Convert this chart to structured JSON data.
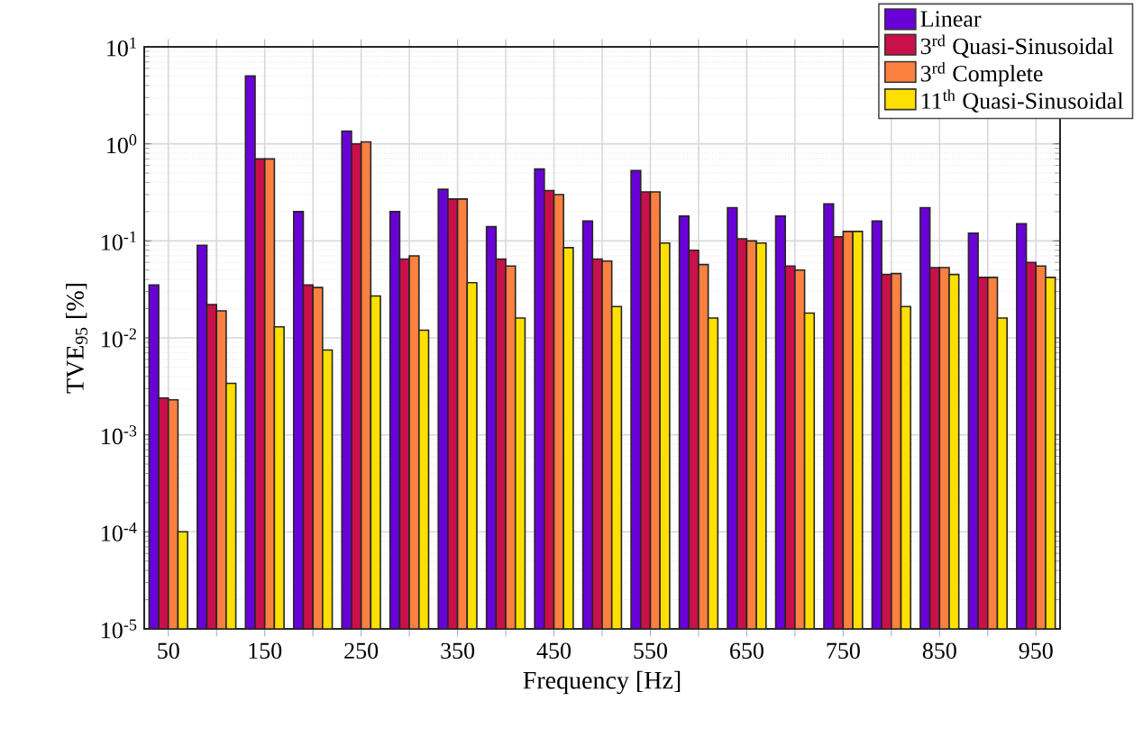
{
  "chart_data": {
    "type": "bar",
    "xlabel": "Frequency [Hz]",
    "ylabel": "TVE$_{95}$ [%]",
    "categories": [
      "50",
      null,
      "150",
      null,
      "250",
      null,
      "350",
      null,
      "450",
      null,
      "550",
      null,
      "650",
      null,
      "750",
      null,
      "850",
      null,
      "950"
    ],
    "series": [
      {
        "name": "Linear",
        "color": "#6a00d8",
        "values": [
          0.035,
          0.09,
          5,
          0.2,
          1.35,
          0.2,
          0.34,
          0.14,
          0.55,
          0.16,
          0.53,
          0.18,
          0.22,
          0.18,
          0.24,
          0.16,
          0.22,
          0.12,
          0.15
        ]
      },
      {
        "name": "3$^{rd}$ Quasi-Sinusoidal",
        "color": "#c9104a",
        "values": [
          0.0024,
          0.022,
          0.7,
          0.035,
          1.0,
          0.065,
          0.27,
          0.065,
          0.33,
          0.065,
          0.32,
          0.08,
          0.105,
          0.055,
          0.11,
          0.045,
          0.053,
          0.042,
          0.06
        ]
      },
      {
        "name": "3$^{rd}$ Complete",
        "color": "#fc8040",
        "values": [
          0.0023,
          0.019,
          0.7,
          0.033,
          1.05,
          0.07,
          0.27,
          0.055,
          0.3,
          0.062,
          0.32,
          0.057,
          0.1,
          0.05,
          0.125,
          0.046,
          0.053,
          0.042,
          0.055
        ]
      },
      {
        "name": "11$^{th}$ Quasi-Sinusoidal",
        "color": "#ffe000",
        "values": [
          0.0001,
          0.0034,
          0.013,
          0.0075,
          0.027,
          0.012,
          0.037,
          0.016,
          0.085,
          0.021,
          0.095,
          0.016,
          0.095,
          0.018,
          0.125,
          0.021,
          0.045,
          0.016,
          0.042
        ]
      }
    ],
    "log": "y",
    "ylim": [
      1e-05,
      10
    ],
    "yticks": [
      {
        "value": 1e-05,
        "label": "10$^{-5}$"
      },
      {
        "value": 0.0001,
        "label": "10$^{-4}$"
      },
      {
        "value": 0.001,
        "label": "10$^{-3}$"
      },
      {
        "value": 0.01,
        "label": "10$^{-2}$"
      },
      {
        "value": 0.1,
        "label": "10$^{-1}$"
      },
      {
        "value": 1,
        "label": "10$^{0}$"
      },
      {
        "value": 10,
        "label": "10$^{1}$"
      }
    ],
    "grid": true,
    "legend": "top right"
  }
}
